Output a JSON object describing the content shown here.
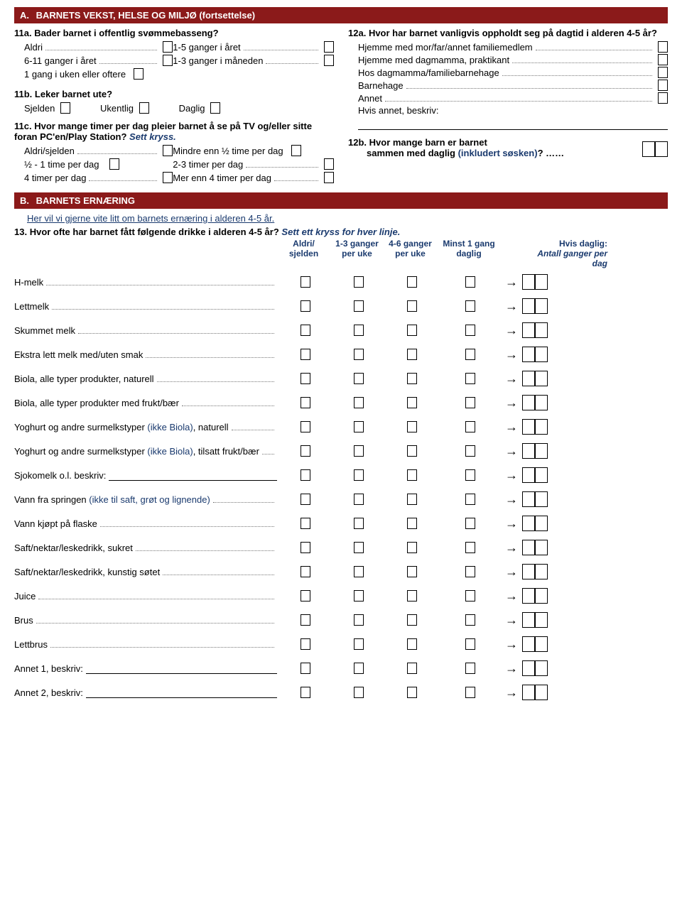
{
  "sectionA": {
    "header_letter": "A.",
    "header_title": "BARNETS VEKST, HELSE OG MILJØ (fortsettelse)",
    "q11a": {
      "num": "11a.",
      "title": "Bader barnet i offentlig svømmebasseng?",
      "opt1": "Aldri",
      "opt2": "1-5 ganger i året",
      "opt3": "6-11 ganger i året",
      "opt4": "1-3 ganger i måneden",
      "opt5": "1 gang i uken eller oftere"
    },
    "q11b": {
      "num": "11b.",
      "title": "Leker barnet ute?",
      "opt1": "Sjelden",
      "opt2": "Ukentlig",
      "opt3": "Daglig"
    },
    "q11c": {
      "num": "11c.",
      "title": "Hvor mange timer per dag pleier barnet å se på TV og/eller sitte foran PC'en/Play Station?",
      "hint": "Sett kryss.",
      "r1a": "Aldri/sjelden",
      "r1b": "Mindre enn ½ time per dag",
      "r2a": "½ - 1 time per dag",
      "r2b": "2-3 timer per dag",
      "r3a": "4 timer per dag",
      "r3b": "Mer enn 4 timer per dag"
    },
    "q12a": {
      "num": "12a.",
      "title": "Hvor har barnet vanligvis oppholdt seg på dagtid i alderen 4-5 år?",
      "opt1": "Hjemme med mor/far/annet familiemedlem",
      "opt2": "Hjemme med dagmamma, praktikant",
      "opt3": "Hos dagmamma/familiebarnehage",
      "opt4": "Barnehage",
      "opt5": "Annet",
      "other": "Hvis annet, beskriv:"
    },
    "q12b": {
      "num": "12b.",
      "title_a": "Hvor mange barn er barnet",
      "title_b": "sammen med daglig ",
      "paren": "(inkludert søsken)",
      "qm": "? ……"
    }
  },
  "sectionB": {
    "header_letter": "B.",
    "header_title": "BARNETS ERNÆRING",
    "intro": "Her vil vi gjerne vite litt om barnets ernæring i alderen 4-5 år.",
    "q13": {
      "num": "13.",
      "title": "Hvor ofte har barnet fått følgende drikke i alderen 4-5 år?",
      "hint": "Sett ett kryss for hver linje.",
      "col1a": "Aldri/",
      "col1b": "sjelden",
      "col2a": "1-3 ganger",
      "col2b": "per uke",
      "col3a": "4-6 ganger",
      "col3b": "per uke",
      "col4a": "Minst 1 gang",
      "col4b": "daglig",
      "col5a": "Hvis daglig:",
      "col5b": "Antall ganger per dag"
    },
    "drinks": {
      "d1": "H-melk",
      "d2": "Lettmelk",
      "d3": "Skummet melk",
      "d4": "Ekstra lett melk med/uten smak",
      "d5": "Biola, alle typer produkter, naturell",
      "d6": "Biola, alle typer produkter med frukt/bær",
      "d7a": "Yoghurt og andre surmelkstyper ",
      "d7b": "(ikke Biola)",
      "d7c": ", naturell",
      "d8a": "Yoghurt og andre surmelkstyper ",
      "d8b": "(ikke Biola)",
      "d8c": ", tilsatt frukt/bær",
      "d9": "Sjokomelk o.l. beskriv:",
      "d10a": "Vann fra springen ",
      "d10b": "(ikke til saft, grøt og lignende)",
      "d11": "Vann kjøpt på flaske",
      "d12": "Saft/nektar/leskedrikk, sukret",
      "d13": "Saft/nektar/leskedrikk, kunstig søtet",
      "d14": "Juice",
      "d15": "Brus",
      "d16": "Lettbrus",
      "d17": "Annet 1, beskriv:",
      "d18": "Annet 2, beskriv:"
    }
  }
}
